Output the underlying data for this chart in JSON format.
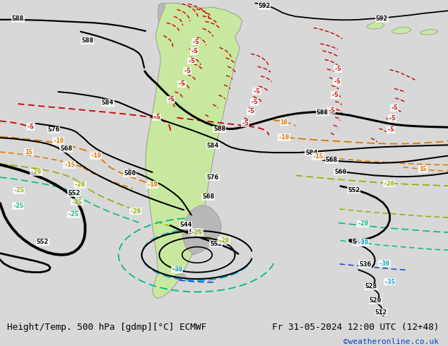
{
  "title_left": "Height/Temp. 500 hPa [gdmp][°C] ECMWF",
  "title_right": "Fr 31-05-2024 12:00 UTC (12+48)",
  "credit": "©weatheronline.co.uk",
  "bg_color": "#d8d8d8",
  "land_color": "#c8e8a0",
  "ocean_color": "#e0e0e0",
  "gray_land_color": "#b8b8b8",
  "bottom_bar_color": "#c8c8c8",
  "figsize": [
    6.34,
    4.9
  ],
  "dpi": 100
}
